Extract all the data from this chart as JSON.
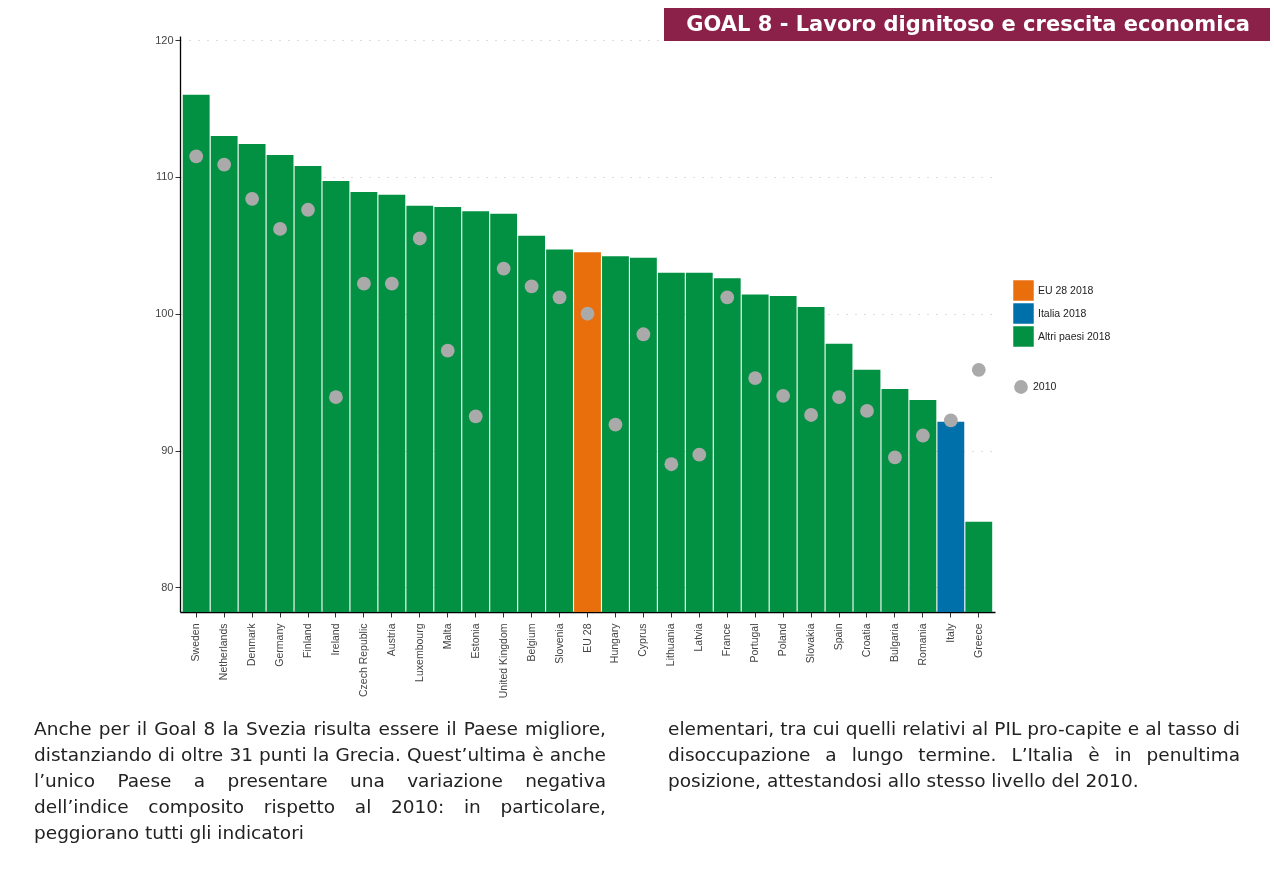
{
  "chart_data": {
    "type": "bar",
    "title": "GOAL 8 - Lavoro dignitoso e crescita economica",
    "categories": [
      "Sweden",
      "Netherlands",
      "Denmark",
      "Germany",
      "Finland",
      "Ireland",
      "Czech Republic",
      "Austria",
      "Luxembourg",
      "Malta",
      "Estonia",
      "United Kingdom",
      "Belgium",
      "Slovenia",
      "EU 28",
      "Hungary",
      "Cyprus",
      "Lithuania",
      "Latvia",
      "France",
      "Portugal",
      "Poland",
      "Slovakia",
      "Spain",
      "Croatia",
      "Bulgaria",
      "Romania",
      "Italy",
      "Greece"
    ],
    "series": [
      {
        "name": "EU 28 2018",
        "color": "#e96e0c",
        "values": [
          null,
          null,
          null,
          null,
          null,
          null,
          null,
          null,
          null,
          null,
          null,
          null,
          null,
          null,
          104.5,
          null,
          null,
          null,
          null,
          null,
          null,
          null,
          null,
          null,
          null,
          null,
          null,
          null,
          null
        ]
      },
      {
        "name": "Italia 2018",
        "color": "#0070ab",
        "values": [
          null,
          null,
          null,
          null,
          null,
          null,
          null,
          null,
          null,
          null,
          null,
          null,
          null,
          null,
          null,
          null,
          null,
          null,
          null,
          null,
          null,
          null,
          null,
          null,
          null,
          null,
          null,
          92.1,
          null
        ]
      },
      {
        "name": "Altri paesi 2018",
        "color": "#029142",
        "values": [
          116.0,
          113.0,
          112.4,
          111.6,
          110.8,
          109.7,
          108.9,
          108.7,
          107.9,
          107.8,
          107.5,
          107.3,
          105.7,
          104.7,
          null,
          104.2,
          104.1,
          103.0,
          103.0,
          102.6,
          101.4,
          101.3,
          100.5,
          97.8,
          95.9,
          94.5,
          93.7,
          null,
          84.8
        ]
      },
      {
        "name": "2010",
        "type": "scatter",
        "color": "#aaaaaa",
        "values": [
          111.5,
          110.9,
          108.4,
          106.2,
          107.6,
          93.9,
          102.2,
          102.2,
          105.5,
          97.3,
          92.5,
          103.3,
          102.0,
          101.2,
          100.0,
          91.9,
          98.5,
          89.0,
          89.7,
          101.2,
          95.3,
          94.0,
          92.6,
          93.9,
          92.9,
          89.5,
          91.1,
          92.2,
          95.9
        ]
      }
    ],
    "ylim": [
      78.2,
      120.3
    ],
    "yticks": [
      80,
      90,
      100,
      110,
      120
    ],
    "grid": "y",
    "legend": "right",
    "marker": "circle",
    "annotations": [
      "Anche per il Goal 8 la Svezia risulta essere il Paese migliore, distanziando di oltre 31 punti la Grecia. Quest’ultima è anche l’unico Paese a presentare una variazione negativa dell’indice composito rispetto al 2010: in particolare, peggiorano tutti gli indicatori",
      "elementari, tra cui quelli relativi al PIL pro-capite e al tasso di disoccupazione a lungo termine. L’Italia è in penultima posizione, attestandosi allo stesso livello del 2010."
    ]
  }
}
